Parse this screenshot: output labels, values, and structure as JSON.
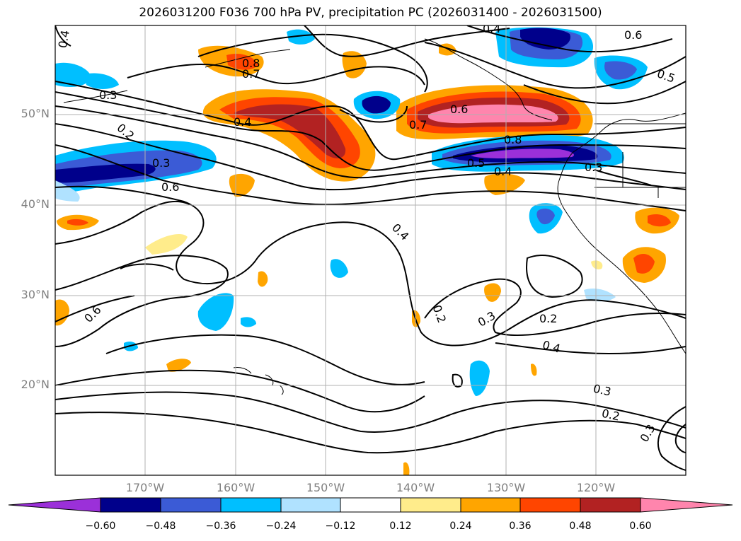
{
  "title": "2026031200 F036 700 hPa PV, precipitation PC (2026031400 - 2026031500)",
  "map": {
    "lat_labels": [
      "50°N",
      "40°N",
      "30°N",
      "20°N"
    ],
    "lon_labels": [
      "170°W",
      "160°W",
      "150°W",
      "140°W",
      "130°W",
      "120°W"
    ],
    "contour_labels": [
      "0.4",
      "0.6",
      "0.3",
      "0.2",
      "0.3",
      "0.4",
      "0.6",
      "0.8",
      "0.7",
      "0.4",
      "0.6",
      "0.7",
      "0.8",
      "0.5",
      "0.4",
      "0.3",
      "0.5",
      "0.4",
      "0.6",
      "0.2",
      "0.3",
      "0.2",
      "0.4",
      "0.3",
      "0.2",
      "0.3"
    ]
  },
  "colorbar": {
    "labels": [
      "−0.60",
      "−0.48",
      "−0.36",
      "−0.24",
      "−0.12",
      "0.12",
      "0.24",
      "0.36",
      "0.48",
      "0.60"
    ],
    "colors": [
      "#9b30d9",
      "#00008b",
      "#3b5bd6",
      "#00bfff",
      "#b0e2ff",
      "#ffffff",
      "#ffec8b",
      "#ffa500",
      "#ff4500",
      "#b22222",
      "#ff85ad"
    ]
  }
}
